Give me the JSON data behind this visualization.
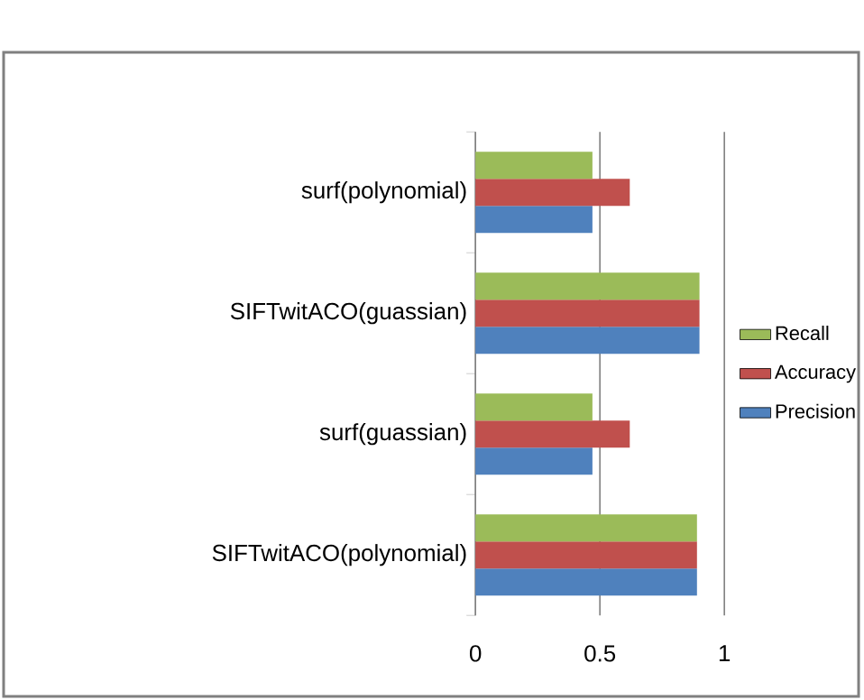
{
  "chart_data": {
    "type": "bar",
    "orientation": "horizontal",
    "categories": [
      "surf(polynomial)",
      "SIFTwitACO(guassian)",
      "surf(guassian)",
      "SIFTwitACO(polynomial)"
    ],
    "series": [
      {
        "name": "Precision",
        "color": "#4f81bd",
        "values": [
          0.47,
          0.9,
          0.47,
          0.89
        ]
      },
      {
        "name": "Accuracy",
        "color": "#c0504d",
        "values": [
          0.62,
          0.9,
          0.62,
          0.89
        ]
      },
      {
        "name": "Recall",
        "color": "#9bbb59",
        "values": [
          0.47,
          0.9,
          0.47,
          0.89
        ]
      }
    ],
    "xlim": [
      0,
      1
    ],
    "xticks": [
      0,
      0.5,
      1
    ],
    "grid": "x",
    "legend": "right"
  }
}
